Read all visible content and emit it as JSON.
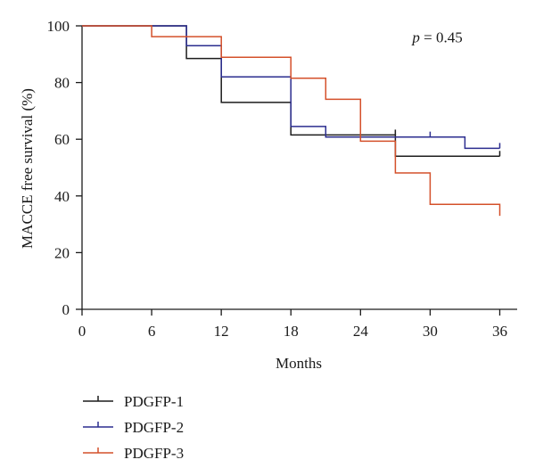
{
  "chart_data": {
    "type": "line",
    "step": true,
    "title": "",
    "xlabel": "Months",
    "ylabel": "MACCE free survival (%)",
    "xlim": [
      0,
      37.5
    ],
    "ylim": [
      0,
      100
    ],
    "xticks": [
      0,
      6,
      12,
      18,
      24,
      30,
      36
    ],
    "yticks": [
      0,
      20,
      40,
      60,
      80,
      100
    ],
    "annotation": {
      "italic": "p",
      "rest": " = 0.45",
      "x": 30,
      "y": 96
    },
    "legend_position": "bottom-left",
    "series": [
      {
        "name": "PDGFP-1",
        "color": "#1c1c1c",
        "points": [
          [
            0,
            100
          ],
          [
            9,
            100
          ],
          [
            9,
            88.5
          ],
          [
            12,
            88.5
          ],
          [
            12,
            73
          ],
          [
            18,
            73
          ],
          [
            18,
            61.5
          ],
          [
            27,
            61.5
          ],
          [
            27,
            54
          ],
          [
            36,
            54
          ]
        ],
        "censor": [
          [
            27,
            61.5
          ],
          [
            36,
            54
          ]
        ]
      },
      {
        "name": "PDGFP-2",
        "color": "#2b2d8f",
        "points": [
          [
            0,
            100
          ],
          [
            9,
            100
          ],
          [
            9,
            93
          ],
          [
            12,
            93
          ],
          [
            12,
            82
          ],
          [
            18,
            82
          ],
          [
            18,
            64.5
          ],
          [
            21,
            64.5
          ],
          [
            21,
            60.8
          ],
          [
            33,
            60.8
          ],
          [
            33,
            56.8
          ],
          [
            36,
            56.8
          ]
        ],
        "censor": [
          [
            30,
            60.8
          ],
          [
            36,
            56.8
          ]
        ]
      },
      {
        "name": "PDGFP-3",
        "color": "#d4502a",
        "points": [
          [
            0,
            100
          ],
          [
            6,
            100
          ],
          [
            6,
            96.2
          ],
          [
            12,
            96.2
          ],
          [
            12,
            88.9
          ],
          [
            18,
            88.9
          ],
          [
            18,
            81.5
          ],
          [
            21,
            81.5
          ],
          [
            21,
            74.1
          ],
          [
            24,
            74.1
          ],
          [
            24,
            59.3
          ],
          [
            27,
            59.3
          ],
          [
            27,
            48.1
          ],
          [
            30,
            48.1
          ],
          [
            30,
            37
          ],
          [
            36,
            37
          ],
          [
            36,
            33
          ]
        ],
        "censor": []
      }
    ]
  }
}
